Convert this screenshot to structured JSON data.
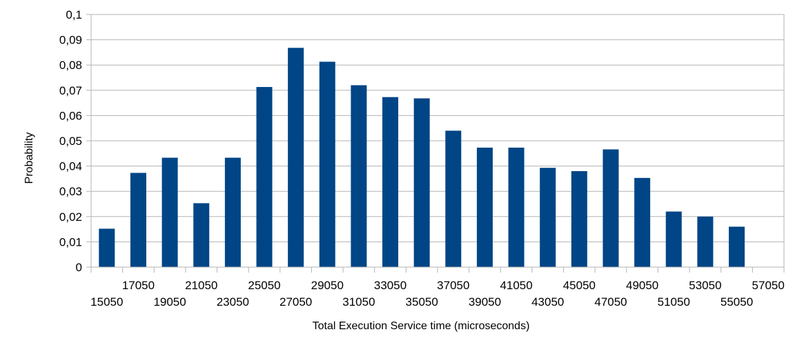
{
  "chart_data": {
    "type": "bar",
    "title": "",
    "xlabel": "Total Execution Service time (microseconds)",
    "ylabel": "Probability",
    "ylim": [
      0,
      0.1
    ],
    "y_ticks": [
      "0",
      "0,01",
      "0,02",
      "0,03",
      "0,04",
      "0,05",
      "0,06",
      "0,07",
      "0,08",
      "0,09",
      "0,1"
    ],
    "x_tick_labels": [
      "15050",
      "17050",
      "19050",
      "21050",
      "23050",
      "25050",
      "27050",
      "29050",
      "31050",
      "33050",
      "35050",
      "37050",
      "39050",
      "41050",
      "43050",
      "45050",
      "47050",
      "49050",
      "51050",
      "53050",
      "55050",
      "57050"
    ],
    "categories": [
      "15050",
      "17050",
      "19050",
      "21050",
      "23050",
      "25050",
      "27050",
      "29050",
      "31050",
      "33050",
      "35050",
      "37050",
      "39050",
      "41050",
      "43050",
      "45050",
      "47050",
      "49050",
      "51050",
      "53050",
      "55050",
      "57050"
    ],
    "values": [
      0.0152,
      0.0373,
      0.0433,
      0.0253,
      0.0433,
      0.0713,
      0.0868,
      0.0813,
      0.072,
      0.0673,
      0.0668,
      0.054,
      0.0473,
      0.0473,
      0.0393,
      0.038,
      0.0466,
      0.0353,
      0.022,
      0.02,
      0.016,
      0
    ],
    "grid": true,
    "legend": "none",
    "bar_color": "#004586",
    "grid_color": "#b3b3b3"
  }
}
